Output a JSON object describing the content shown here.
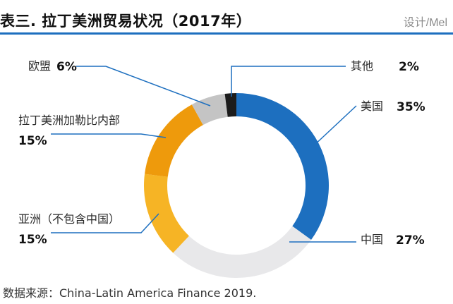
{
  "header": {
    "title": "表三. 拉丁美洲贸易状况（2017年）",
    "credit": "设计/Mel"
  },
  "source": "数据来源：China-Latin America Finance 2019.",
  "colors": {
    "rule": "#1d6fbf",
    "us": "#1d6fbf",
    "china": "#e8e8ea",
    "asia": "#f6b425",
    "latam": "#ee9a0c",
    "eu": "#c4c4c4",
    "other": "#1c1c1c"
  },
  "chart_data": {
    "type": "pie",
    "title": "拉丁美洲贸易状况（2017年）",
    "donut": true,
    "slices": [
      {
        "key": "us",
        "label": "美国",
        "value": 35,
        "display": "35%"
      },
      {
        "key": "china",
        "label": "中国",
        "value": 27,
        "display": "27%"
      },
      {
        "key": "asia",
        "label": "亚洲（不包含中国）",
        "value": 15,
        "display": "15%"
      },
      {
        "key": "latam",
        "label": "拉丁美洲加勒比内部",
        "value": 15,
        "display": "15%"
      },
      {
        "key": "eu",
        "label": "欧盟",
        "value": 6,
        "display": "6%"
      },
      {
        "key": "other",
        "label": "其他",
        "value": 2,
        "display": "2%"
      }
    ]
  }
}
